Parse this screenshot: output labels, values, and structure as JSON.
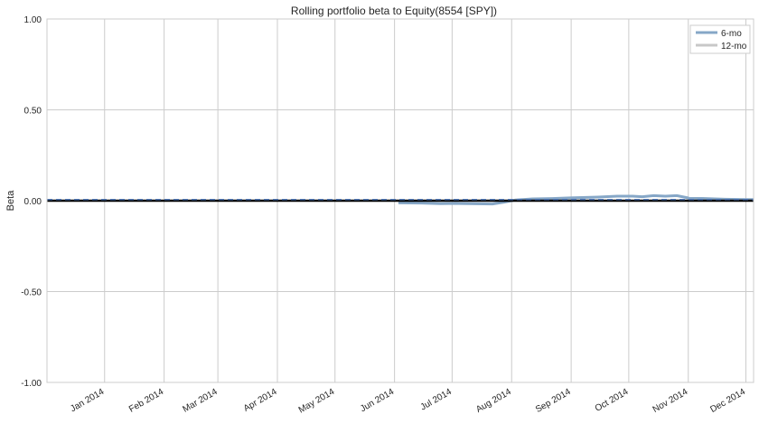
{
  "chart_data": {
    "type": "line",
    "title": "Rolling portfolio beta to Equity(8554 [SPY])",
    "xlabel": "",
    "ylabel": "Beta",
    "ylim": [
      -1.0,
      1.0
    ],
    "yticks": [
      -1.0,
      -0.5,
      0.0,
      0.5,
      1.0
    ],
    "ytick_labels": [
      "-1.00",
      "-0.50",
      "0.00",
      "0.50",
      "1.00"
    ],
    "xlim": [
      "2013-12-02",
      "2014-12-05"
    ],
    "xticks": [
      "2014-01-01",
      "2014-02-01",
      "2014-03-01",
      "2014-04-01",
      "2014-05-01",
      "2014-06-01",
      "2014-07-01",
      "2014-08-01",
      "2014-09-01",
      "2014-10-01",
      "2014-11-01",
      "2014-12-01"
    ],
    "xtick_labels": [
      "Jan 2014",
      "Feb 2014",
      "Mar 2014",
      "Apr 2014",
      "May 2014",
      "Jun 2014",
      "Jul 2014",
      "Aug 2014",
      "Sep 2014",
      "Oct 2014",
      "Nov 2014",
      "Dec 2014"
    ],
    "grid": true,
    "legend_position": "top-right",
    "series": [
      {
        "name": "6-mo",
        "color": "#86a7c7",
        "x": [
          "2014-06-03",
          "2014-06-15",
          "2014-06-25",
          "2014-07-03",
          "2014-07-13",
          "2014-07-22",
          "2014-07-28",
          "2014-08-03",
          "2014-08-12",
          "2014-08-22",
          "2014-09-02",
          "2014-09-15",
          "2014-09-25",
          "2014-10-03",
          "2014-10-08",
          "2014-10-14",
          "2014-10-20",
          "2014-10-26",
          "2014-11-01",
          "2014-11-10",
          "2014-11-20",
          "2014-12-01",
          "2014-12-05"
        ],
        "y": [
          -0.012,
          -0.013,
          -0.016,
          -0.015,
          -0.017,
          -0.018,
          -0.008,
          0.004,
          0.01,
          0.012,
          0.016,
          0.02,
          0.025,
          0.025,
          0.022,
          0.028,
          0.025,
          0.028,
          0.015,
          0.012,
          0.008,
          0.006,
          0.006
        ]
      },
      {
        "name": "12-mo",
        "color": "#c8c8c8",
        "x": [],
        "y": []
      }
    ],
    "reference_line": {
      "y": 0.0,
      "color": "#000000"
    },
    "mean_line": {
      "y": 0.0065,
      "style": "dashed",
      "color": "#4c72b0"
    }
  }
}
